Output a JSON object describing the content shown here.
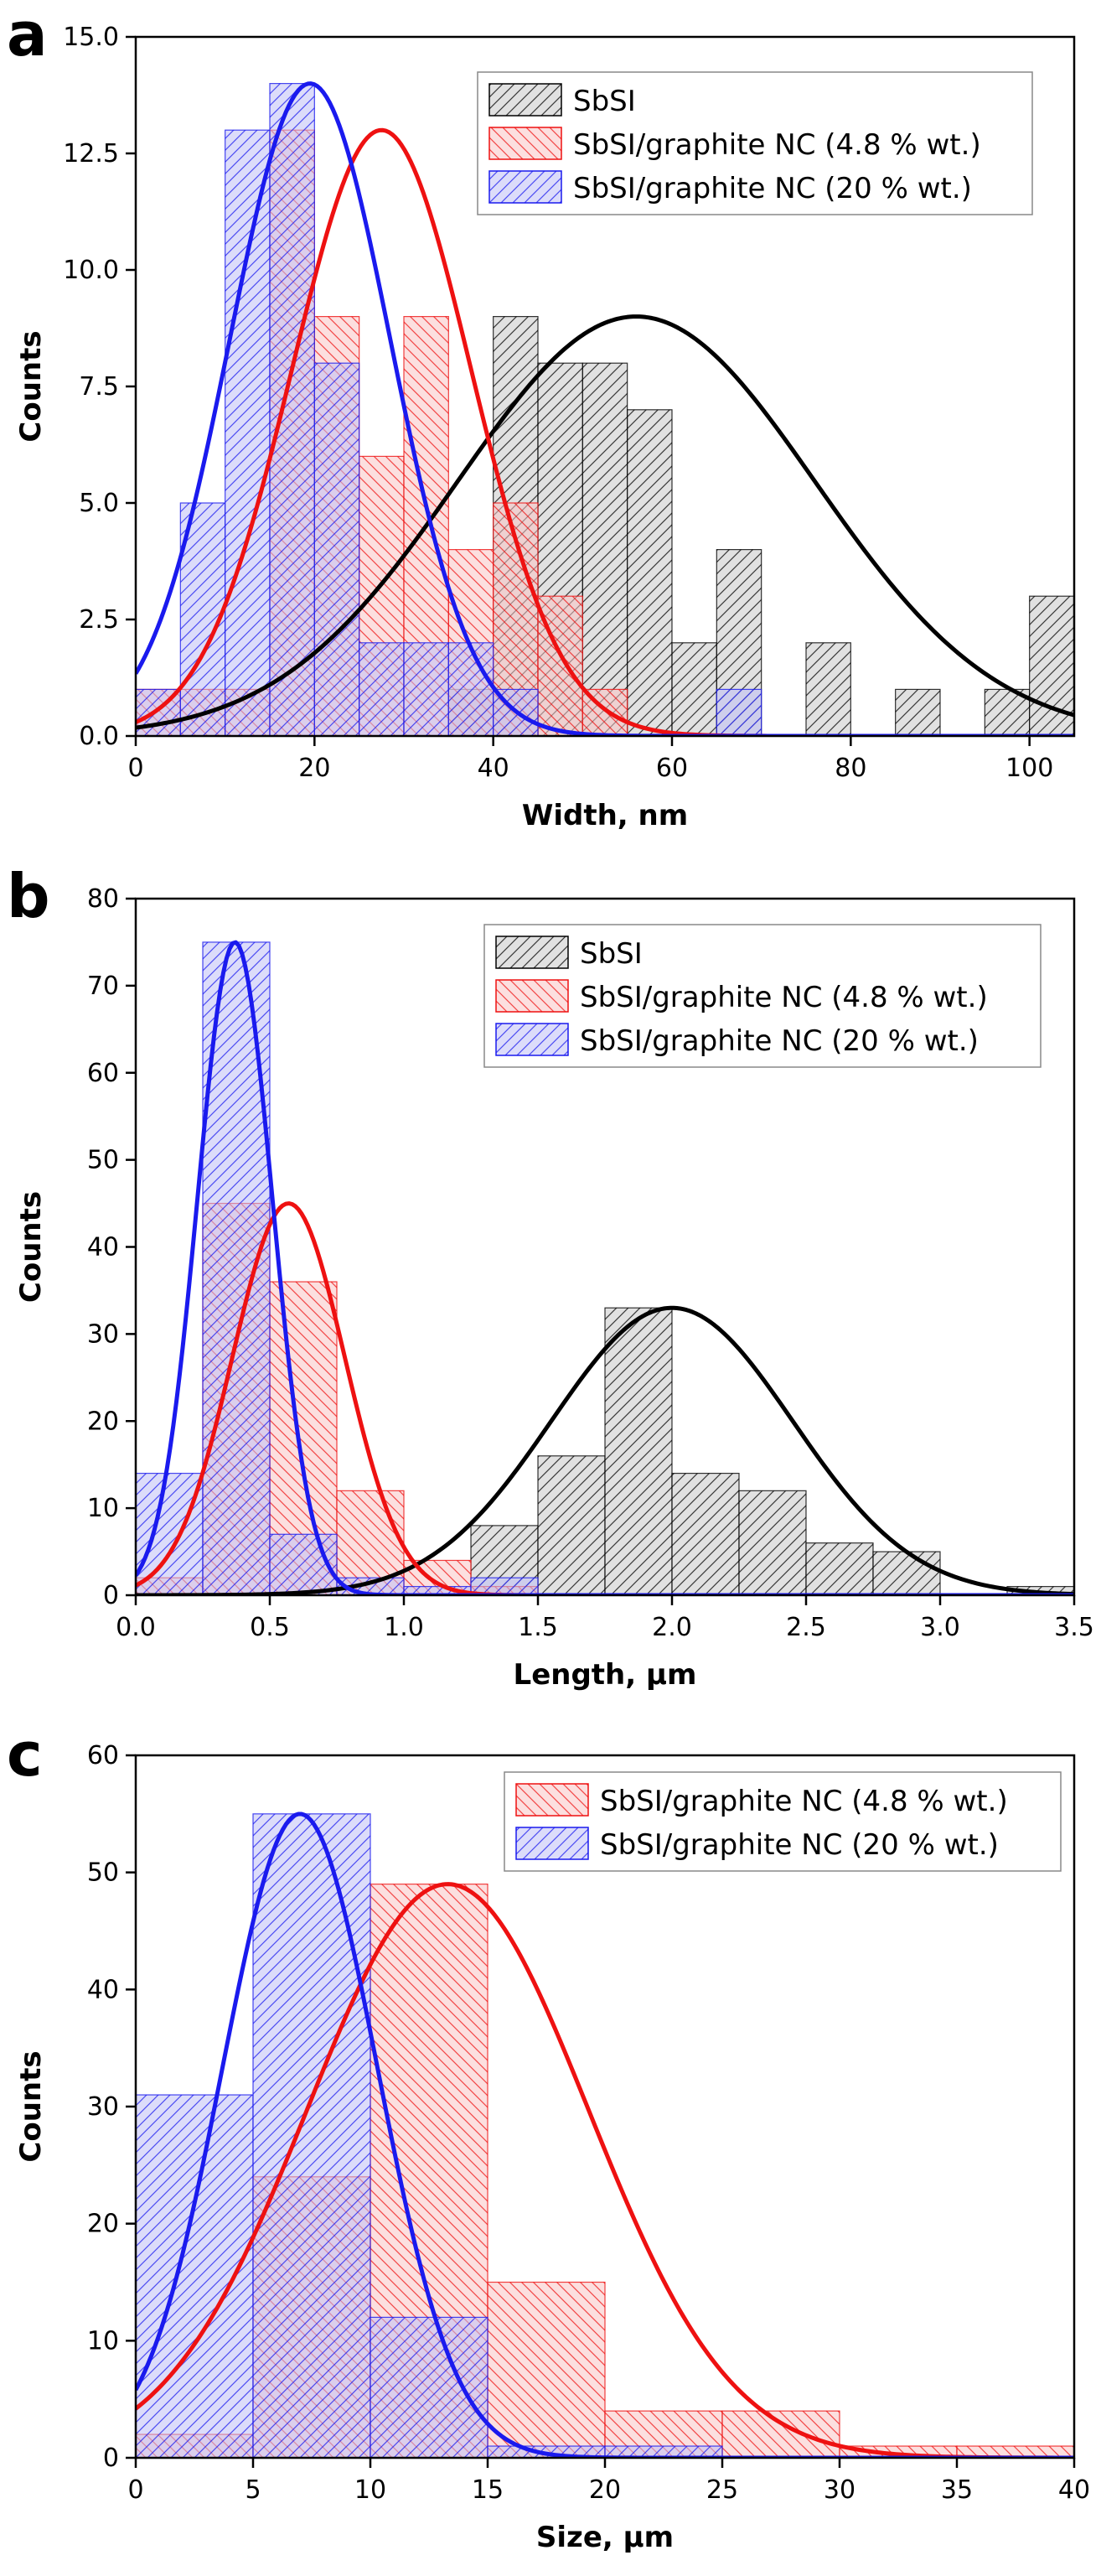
{
  "chart_data": [
    {
      "type": "bar",
      "panel_label": "a",
      "xlabel": "Width, nm",
      "ylabel": "Counts",
      "xlim": [
        0,
        105
      ],
      "ylim": [
        0,
        15
      ],
      "xticks": [
        0,
        20,
        40,
        60,
        80,
        100
      ],
      "yticks": [
        0,
        2.5,
        5,
        7.5,
        10,
        12.5,
        15
      ],
      "xtick_labels": [
        "0",
        "20",
        "40",
        "60",
        "80",
        "100"
      ],
      "ytick_labels": [
        "0.0",
        "2.5",
        "5.0",
        "7.5",
        "10.0",
        "12.5",
        "15.0"
      ],
      "legend_position": "top-right",
      "series": [
        {
          "name": "SbSI",
          "color": "#000000",
          "fill": "#c8c8c8",
          "hatch": "forward",
          "bin_width": 5,
          "bins": [
            [
              35,
              1
            ],
            [
              40,
              9
            ],
            [
              45,
              8
            ],
            [
              50,
              8
            ],
            [
              55,
              7
            ],
            [
              60,
              2
            ],
            [
              65,
              4
            ],
            [
              75,
              2
            ],
            [
              85,
              1
            ],
            [
              95,
              1
            ],
            [
              100,
              3
            ]
          ],
          "fit": {
            "mean": 56,
            "sigma": 20,
            "peak": 9
          }
        },
        {
          "name": "SbSI/graphite NC (4.8 % wt.)",
          "color": "#ee1111",
          "fill": "#f9c4c4",
          "hatch": "back",
          "bin_width": 5,
          "bins": [
            [
              0,
              1
            ],
            [
              5,
              1
            ],
            [
              10,
              1
            ],
            [
              15,
              13
            ],
            [
              20,
              9
            ],
            [
              25,
              6
            ],
            [
              30,
              9
            ],
            [
              35,
              4
            ],
            [
              40,
              5
            ],
            [
              45,
              3
            ],
            [
              50,
              1
            ]
          ],
          "fit": {
            "mean": 27.5,
            "sigma": 10,
            "peak": 13
          }
        },
        {
          "name": "SbSI/graphite NC (20 % wt.)",
          "color": "#1a1aee",
          "fill": "#c0c0f6",
          "hatch": "forward",
          "bin_width": 5,
          "bins": [
            [
              0,
              1
            ],
            [
              5,
              5
            ],
            [
              10,
              13
            ],
            [
              15,
              14
            ],
            [
              20,
              8
            ],
            [
              25,
              2
            ],
            [
              30,
              2
            ],
            [
              35,
              2
            ],
            [
              40,
              1
            ],
            [
              65,
              1
            ]
          ],
          "fit": {
            "mean": 19.5,
            "sigma": 9,
            "peak": 14
          }
        }
      ]
    },
    {
      "type": "bar",
      "panel_label": "b",
      "xlabel": "Length, μm",
      "ylabel": "Counts",
      "xlim": [
        0,
        3.5
      ],
      "ylim": [
        0,
        80
      ],
      "xticks": [
        0,
        0.5,
        1,
        1.5,
        2,
        2.5,
        3,
        3.5
      ],
      "yticks": [
        0,
        10,
        20,
        30,
        40,
        50,
        60,
        70,
        80
      ],
      "xtick_labels": [
        "0.0",
        "0.5",
        "1.0",
        "1.5",
        "2.0",
        "2.5",
        "3.0",
        "3.5"
      ],
      "ytick_labels": [
        "0",
        "10",
        "20",
        "30",
        "40",
        "50",
        "60",
        "70",
        "80"
      ],
      "legend_position": "top-right",
      "series": [
        {
          "name": "SbSI",
          "color": "#000000",
          "fill": "#c8c8c8",
          "hatch": "forward",
          "bin_width": 0.25,
          "bins": [
            [
              1.25,
              8
            ],
            [
              1.5,
              16
            ],
            [
              1.75,
              33
            ],
            [
              2.0,
              14
            ],
            [
              2.25,
              12
            ],
            [
              2.5,
              6
            ],
            [
              2.75,
              5
            ],
            [
              3.25,
              1
            ]
          ],
          "fit": {
            "mean": 2.0,
            "sigma": 0.45,
            "peak": 33
          }
        },
        {
          "name": "SbSI/graphite NC (4.8 % wt.)",
          "color": "#ee1111",
          "fill": "#f9c4c4",
          "hatch": "back",
          "bin_width": 0.25,
          "bins": [
            [
              0,
              2
            ],
            [
              0.25,
              45
            ],
            [
              0.5,
              36
            ],
            [
              0.75,
              12
            ],
            [
              1.0,
              4
            ],
            [
              1.25,
              1
            ]
          ],
          "fit": {
            "mean": 0.57,
            "sigma": 0.21,
            "peak": 45
          }
        },
        {
          "name": "SbSI/graphite NC (20 % wt.)",
          "color": "#1a1aee",
          "fill": "#c0c0f6",
          "hatch": "forward",
          "bin_width": 0.25,
          "bins": [
            [
              0,
              14
            ],
            [
              0.25,
              75
            ],
            [
              0.5,
              7
            ],
            [
              0.75,
              2
            ],
            [
              1.0,
              1
            ],
            [
              1.25,
              2
            ]
          ],
          "fit": {
            "mean": 0.37,
            "sigma": 0.14,
            "peak": 75
          }
        }
      ]
    },
    {
      "type": "bar",
      "panel_label": "c",
      "xlabel": "Size, μm",
      "ylabel": "Counts",
      "xlim": [
        0,
        40
      ],
      "ylim": [
        0,
        60
      ],
      "xticks": [
        0,
        5,
        10,
        15,
        20,
        25,
        30,
        35,
        40
      ],
      "yticks": [
        0,
        10,
        20,
        30,
        40,
        50,
        60
      ],
      "xtick_labels": [
        "0",
        "5",
        "10",
        "15",
        "20",
        "25",
        "30",
        "35",
        "40"
      ],
      "ytick_labels": [
        "0",
        "10",
        "20",
        "30",
        "40",
        "50",
        "60"
      ],
      "legend_position": "top-right",
      "series": [
        {
          "name": "SbSI/graphite NC (4.8 % wt.)",
          "color": "#ee1111",
          "fill": "#f9c4c4",
          "hatch": "back",
          "bin_width": 5,
          "bins": [
            [
              0,
              2
            ],
            [
              5,
              24
            ],
            [
              10,
              49
            ],
            [
              15,
              15
            ],
            [
              20,
              4
            ],
            [
              25,
              4
            ],
            [
              30,
              1
            ],
            [
              35,
              1
            ]
          ],
          "fit": {
            "mean": 13.3,
            "sigma": 6.0,
            "peak": 49
          }
        },
        {
          "name": "SbSI/graphite NC (20 % wt.)",
          "color": "#1a1aee",
          "fill": "#c0c0f6",
          "hatch": "forward",
          "bin_width": 5,
          "bins": [
            [
              0,
              31
            ],
            [
              5,
              55
            ],
            [
              10,
              12
            ],
            [
              15,
              1
            ],
            [
              20,
              1
            ]
          ],
          "fit": {
            "mean": 7.0,
            "sigma": 3.3,
            "peak": 55
          }
        }
      ]
    }
  ]
}
